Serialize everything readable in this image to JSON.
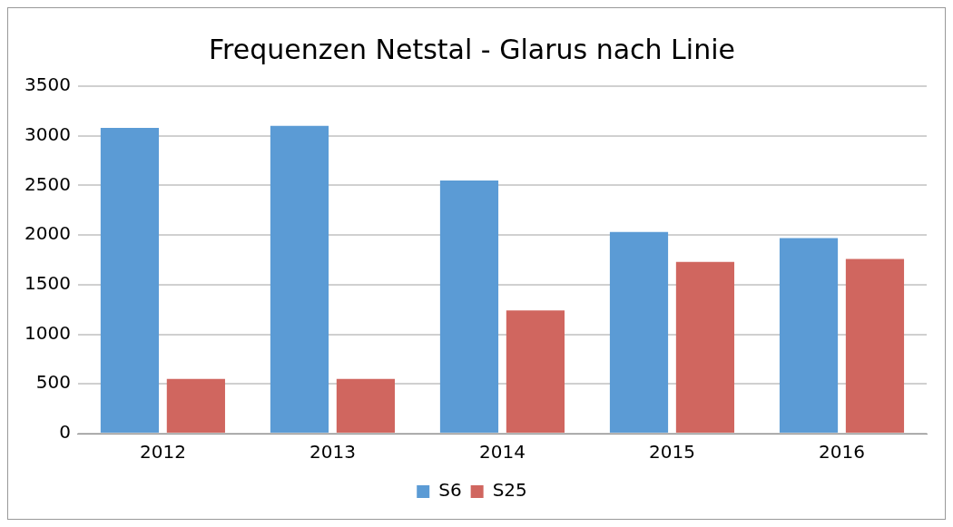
{
  "chart_data": {
    "type": "bar",
    "title": "Frequenzen Netstal - Glarus nach Linie",
    "categories": [
      "2012",
      "2013",
      "2014",
      "2015",
      "2016"
    ],
    "series": [
      {
        "name": "S6",
        "color": "#5b9bd5",
        "values": [
          3080,
          3100,
          2550,
          2030,
          1970
        ]
      },
      {
        "name": "S25",
        "color": "#d0665f",
        "values": [
          550,
          550,
          1240,
          1730,
          1760
        ]
      }
    ],
    "ylim": [
      0,
      3500
    ],
    "yticks": [
      0,
      500,
      1000,
      1500,
      2000,
      2500,
      3000,
      3500
    ],
    "grid": "y",
    "legend": "bottom"
  }
}
